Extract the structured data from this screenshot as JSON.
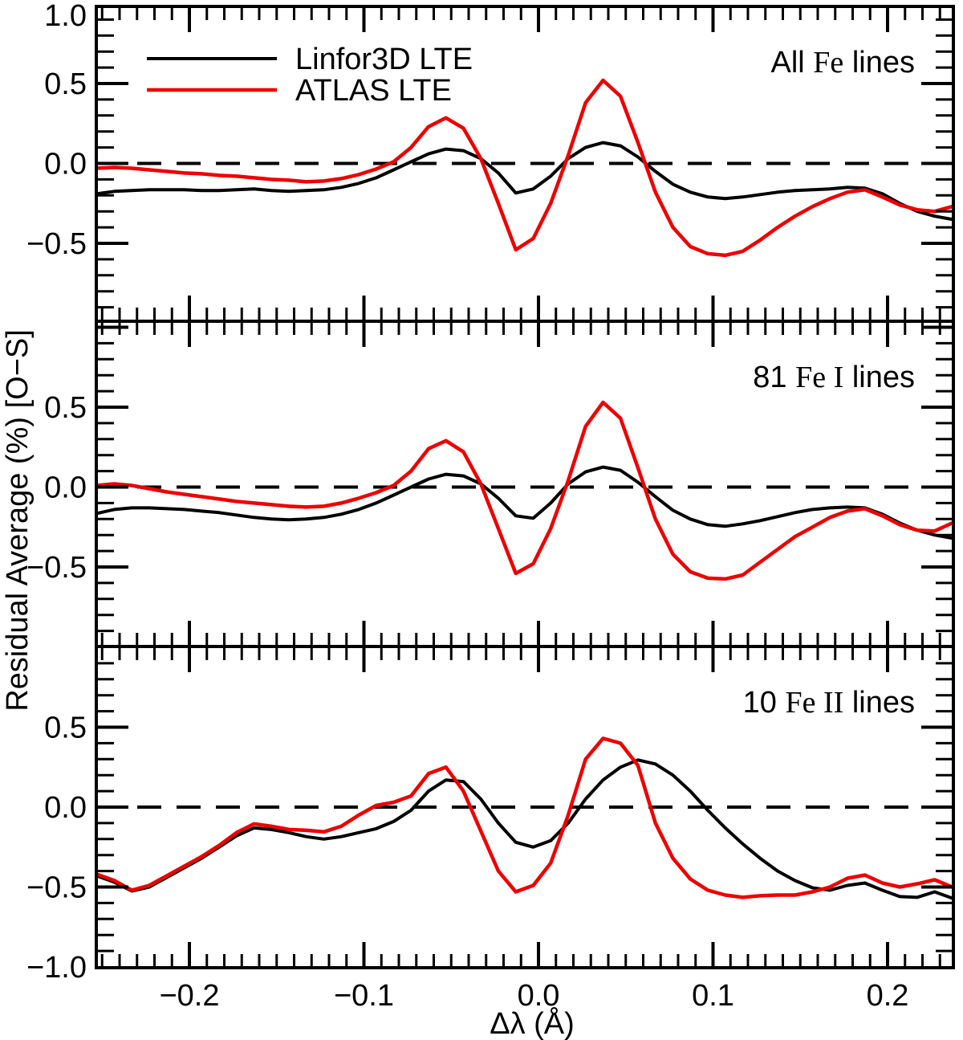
{
  "figure": {
    "background": "#ffffff",
    "frame_color": "#000000",
    "accent_red": "#ee0000"
  },
  "chart_data": {
    "type": "line",
    "x_label": "Δλ (Å)",
    "y_label": "Residual Average (%) [O−S]",
    "grid": false,
    "zero_line_style": "dashed",
    "xlim": [
      -0.253,
      0.238
    ],
    "ylim_per_panel": [
      -1.0,
      1.0
    ],
    "xticks": [
      {
        "v": -0.2,
        "t": "−0.2"
      },
      {
        "v": -0.1,
        "t": "−0.1"
      },
      {
        "v": 0.0,
        "t": "0.0"
      },
      {
        "v": 0.1,
        "t": "0.1"
      },
      {
        "v": 0.2,
        "t": "0.2"
      }
    ],
    "legend": [
      {
        "label": "Linfor3D LTE",
        "color": "#000000",
        "width": 4
      },
      {
        "label": "ATLAS LTE",
        "color": "#ee0000",
        "width": 4.5
      }
    ],
    "x": [
      -0.253,
      -0.243,
      -0.233,
      -0.223,
      -0.213,
      -0.203,
      -0.193,
      -0.183,
      -0.173,
      -0.163,
      -0.153,
      -0.143,
      -0.133,
      -0.123,
      -0.113,
      -0.103,
      -0.093,
      -0.083,
      -0.073,
      -0.063,
      -0.053,
      -0.043,
      -0.033,
      -0.023,
      -0.013,
      -0.003,
      0.007,
      0.017,
      0.027,
      0.037,
      0.047,
      0.057,
      0.067,
      0.077,
      0.087,
      0.097,
      0.107,
      0.117,
      0.127,
      0.137,
      0.147,
      0.157,
      0.167,
      0.177,
      0.187,
      0.197,
      0.207,
      0.217,
      0.227,
      0.237
    ],
    "panels": [
      {
        "title": "All Fe lines",
        "title_parts": [
          {
            "text": "All ",
            "serif": false
          },
          {
            "text": "Fe",
            "serif": true
          },
          {
            "text": " lines",
            "serif": false
          }
        ],
        "yticks": [
          {
            "v": 1.0,
            "t": "1.0"
          },
          {
            "v": 0.5,
            "t": "0.5"
          },
          {
            "v": 0.0,
            "t": "0.0"
          },
          {
            "v": -0.5,
            "t": "−0.5"
          }
        ],
        "series": [
          {
            "name": "Linfor3D LTE",
            "color": "#000000",
            "values": [
              -0.19,
              -0.175,
              -0.17,
              -0.165,
              -0.165,
              -0.165,
              -0.17,
              -0.17,
              -0.165,
              -0.16,
              -0.17,
              -0.175,
              -0.17,
              -0.165,
              -0.15,
              -0.125,
              -0.09,
              -0.04,
              0.01,
              0.06,
              0.09,
              0.08,
              0.03,
              -0.06,
              -0.185,
              -0.16,
              -0.08,
              0.03,
              0.1,
              0.13,
              0.11,
              0.04,
              -0.05,
              -0.13,
              -0.18,
              -0.21,
              -0.22,
              -0.21,
              -0.195,
              -0.18,
              -0.17,
              -0.165,
              -0.16,
              -0.15,
              -0.155,
              -0.19,
              -0.25,
              -0.3,
              -0.33,
              -0.35
            ]
          },
          {
            "name": "ATLAS LTE",
            "color": "#ee0000",
            "values": [
              -0.03,
              -0.025,
              -0.03,
              -0.04,
              -0.05,
              -0.06,
              -0.065,
              -0.075,
              -0.08,
              -0.09,
              -0.1,
              -0.105,
              -0.115,
              -0.11,
              -0.095,
              -0.07,
              -0.035,
              0.01,
              0.1,
              0.23,
              0.285,
              0.22,
              0.03,
              -0.25,
              -0.54,
              -0.47,
              -0.25,
              0.05,
              0.38,
              0.52,
              0.42,
              0.13,
              -0.18,
              -0.4,
              -0.52,
              -0.565,
              -0.575,
              -0.55,
              -0.48,
              -0.4,
              -0.33,
              -0.27,
              -0.22,
              -0.18,
              -0.165,
              -0.21,
              -0.26,
              -0.29,
              -0.3,
              -0.27
            ]
          }
        ]
      },
      {
        "title": "81 Fe I lines",
        "title_parts": [
          {
            "text": "81 ",
            "serif": false
          },
          {
            "text": "Fe I",
            "serif": true
          },
          {
            "text": " lines",
            "serif": false
          }
        ],
        "yticks": [
          {
            "v": 0.5,
            "t": "0.5"
          },
          {
            "v": 0.0,
            "t": "0.0"
          },
          {
            "v": -0.5,
            "t": "−0.5"
          }
        ],
        "series": [
          {
            "name": "Linfor3D LTE",
            "color": "#000000",
            "values": [
              -0.165,
              -0.14,
              -0.13,
              -0.13,
              -0.135,
              -0.14,
              -0.15,
              -0.16,
              -0.175,
              -0.19,
              -0.2,
              -0.205,
              -0.2,
              -0.19,
              -0.17,
              -0.14,
              -0.1,
              -0.05,
              0.0,
              0.05,
              0.08,
              0.07,
              0.02,
              -0.07,
              -0.18,
              -0.195,
              -0.1,
              0.02,
              0.095,
              0.125,
              0.105,
              0.03,
              -0.06,
              -0.145,
              -0.2,
              -0.235,
              -0.245,
              -0.23,
              -0.21,
              -0.185,
              -0.16,
              -0.14,
              -0.13,
              -0.125,
              -0.13,
              -0.17,
              -0.225,
              -0.27,
              -0.3,
              -0.32
            ]
          },
          {
            "name": "ATLAS LTE",
            "color": "#ee0000",
            "values": [
              0.01,
              0.02,
              0.01,
              -0.01,
              -0.03,
              -0.045,
              -0.06,
              -0.075,
              -0.09,
              -0.1,
              -0.11,
              -0.12,
              -0.125,
              -0.12,
              -0.1,
              -0.07,
              -0.035,
              0.01,
              0.1,
              0.24,
              0.29,
              0.22,
              0.02,
              -0.26,
              -0.54,
              -0.48,
              -0.26,
              0.04,
              0.38,
              0.53,
              0.43,
              0.12,
              -0.2,
              -0.42,
              -0.53,
              -0.57,
              -0.575,
              -0.55,
              -0.47,
              -0.39,
              -0.31,
              -0.25,
              -0.19,
              -0.15,
              -0.135,
              -0.18,
              -0.235,
              -0.27,
              -0.275,
              -0.225
            ]
          }
        ]
      },
      {
        "title": "10 Fe II lines",
        "title_parts": [
          {
            "text": "10 ",
            "serif": false
          },
          {
            "text": "Fe II",
            "serif": true
          },
          {
            "text": " lines",
            "serif": false
          }
        ],
        "yticks": [
          {
            "v": 0.5,
            "t": "0.5"
          },
          {
            "v": 0.0,
            "t": "0.0"
          },
          {
            "v": -0.5,
            "t": "−0.5"
          },
          {
            "v": -1.0,
            "t": "−1.0"
          }
        ],
        "series": [
          {
            "name": "Linfor3D LTE",
            "color": "#000000",
            "values": [
              -0.43,
              -0.47,
              -0.525,
              -0.5,
              -0.44,
              -0.38,
              -0.32,
              -0.25,
              -0.18,
              -0.13,
              -0.14,
              -0.16,
              -0.185,
              -0.2,
              -0.185,
              -0.16,
              -0.135,
              -0.09,
              -0.02,
              0.1,
              0.17,
              0.16,
              0.05,
              -0.1,
              -0.22,
              -0.25,
              -0.21,
              -0.1,
              0.05,
              0.17,
              0.25,
              0.295,
              0.27,
              0.2,
              0.1,
              -0.02,
              -0.13,
              -0.23,
              -0.32,
              -0.4,
              -0.46,
              -0.505,
              -0.52,
              -0.49,
              -0.475,
              -0.52,
              -0.56,
              -0.565,
              -0.53,
              -0.57
            ]
          },
          {
            "name": "ATLAS LTE",
            "color": "#ee0000",
            "values": [
              -0.42,
              -0.46,
              -0.52,
              -0.49,
              -0.43,
              -0.37,
              -0.31,
              -0.24,
              -0.16,
              -0.105,
              -0.12,
              -0.14,
              -0.145,
              -0.155,
              -0.12,
              -0.05,
              0.01,
              0.03,
              0.07,
              0.21,
              0.25,
              0.1,
              -0.15,
              -0.4,
              -0.53,
              -0.49,
              -0.35,
              -0.05,
              0.3,
              0.43,
              0.4,
              0.26,
              -0.1,
              -0.32,
              -0.45,
              -0.52,
              -0.55,
              -0.565,
              -0.555,
              -0.55,
              -0.55,
              -0.53,
              -0.5,
              -0.445,
              -0.425,
              -0.475,
              -0.5,
              -0.48,
              -0.455,
              -0.5
            ]
          }
        ]
      }
    ]
  }
}
